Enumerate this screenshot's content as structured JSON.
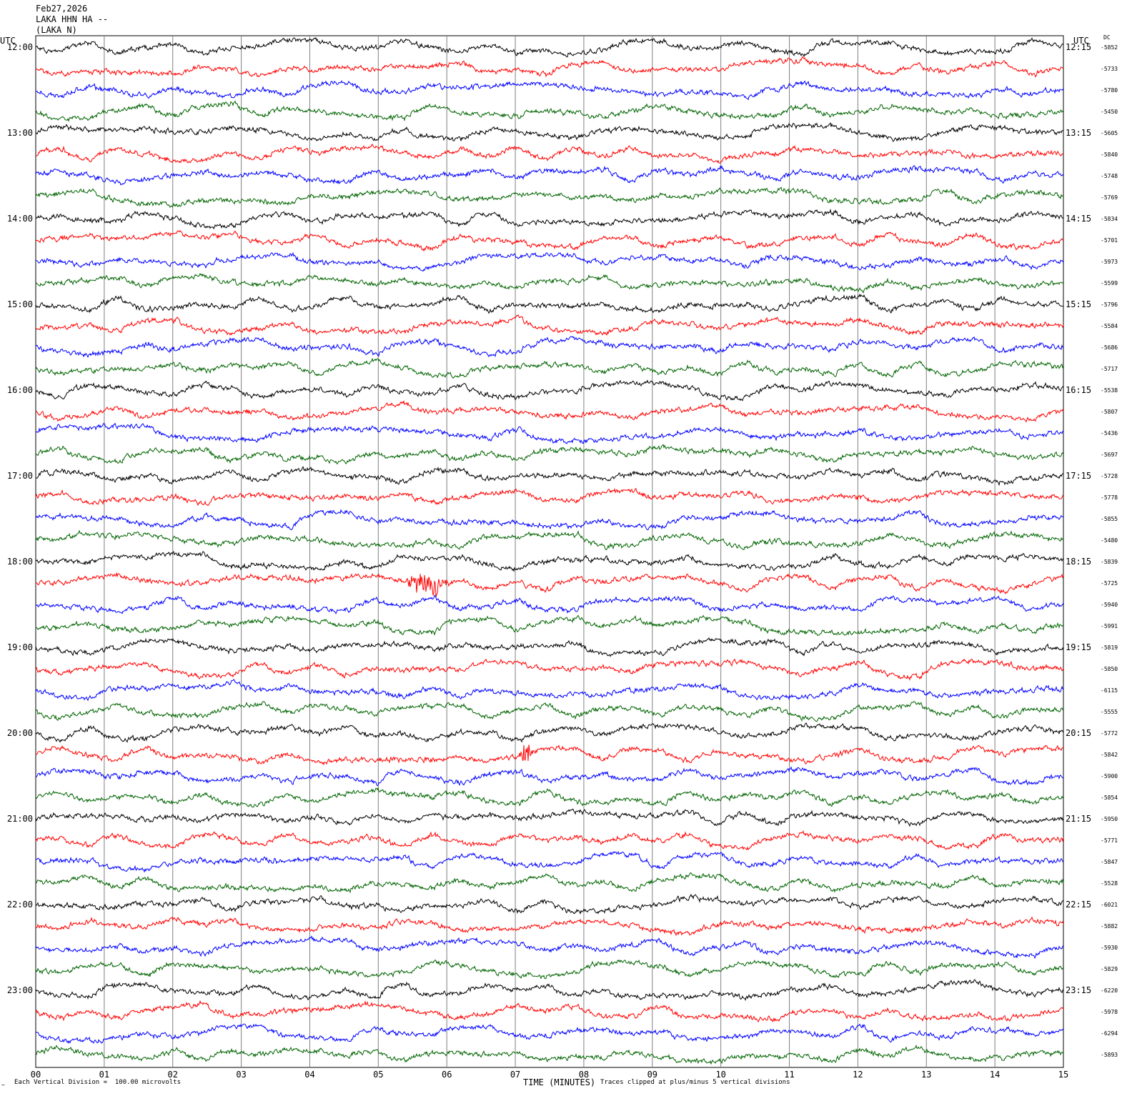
{
  "header": {
    "date": "Feb27,2026",
    "station": "LAKA HHN HA --",
    "location": "(LAKA N)"
  },
  "left_axis_label": "UTC",
  "right_axis_label": "UTC",
  "dc_label": "DC",
  "footer": {
    "scale_note": "Each Vertical Division =  100.00 microvolts",
    "clip_note": "Traces clipped at plus/minus 5 vertical divisions",
    "small_mark": "~"
  },
  "colors": {
    "trace_cycle": [
      "#000000",
      "#ff0000",
      "#0000ff",
      "#006400"
    ],
    "gridline": "#808080",
    "background": "#ffffff"
  },
  "chart_data": {
    "type": "line",
    "title": "",
    "xlabel": "TIME (MINUTES)",
    "ylabel": "",
    "xlim": [
      0,
      15
    ],
    "x_ticks": [
      "00",
      "01",
      "02",
      "03",
      "04",
      "05",
      "06",
      "07",
      "08",
      "09",
      "10",
      "11",
      "12",
      "13",
      "14",
      "15"
    ],
    "grid": "vertical",
    "minutes_per_line": 15,
    "hour_labels_left": [
      "12:00",
      "13:00",
      "14:00",
      "15:00",
      "16:00",
      "17:00",
      "18:00",
      "19:00",
      "20:00",
      "21:00",
      "22:00",
      "23:00"
    ],
    "hour_labels_right": [
      "12:15",
      "13:15",
      "14:15",
      "15:15",
      "16:15",
      "17:15",
      "18:15",
      "19:15",
      "20:15",
      "21:15",
      "22:15",
      "23:15"
    ],
    "dc_offsets": [
      "-5852",
      "-5733",
      "-5780",
      "-5450",
      "-5605",
      "-5840",
      "-5748",
      "-5769",
      "-5834",
      "-5701",
      "-5973",
      "-5599",
      "-5796",
      "-5584",
      "-5686",
      "-5717",
      "-5538",
      "-5807",
      "-5436",
      "-5697",
      "-5728",
      "-5778",
      "-5855",
      "-5480",
      "-5839",
      "-5725",
      "-5940",
      "-5991",
      "-5819",
      "-5850",
      "-6115",
      "-5555",
      "-5772",
      "-5842",
      "-5900",
      "-5854",
      "-5950",
      "-5771",
      "-5847",
      "-5528",
      "-6021",
      "-5882",
      "-5930",
      "-5829",
      "-6220",
      "-5978",
      "-6294",
      "-5893"
    ],
    "events": [
      {
        "trace_index": 25,
        "start_minute": 5.3,
        "end_minute": 6.1,
        "amplitude_divisions": 1.2
      },
      {
        "trace_index": 33,
        "start_minute": 7.05,
        "end_minute": 7.25,
        "amplitude_divisions": 2.0
      }
    ]
  }
}
